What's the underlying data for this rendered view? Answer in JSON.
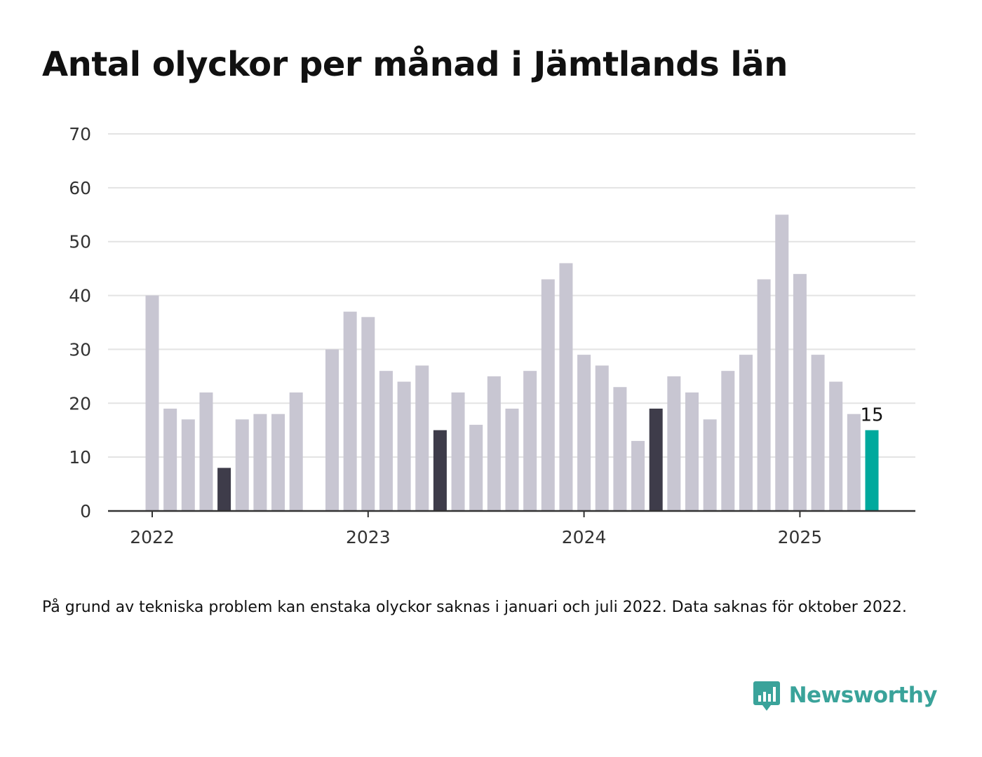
{
  "title": "Antal olyckor per månad i Jämtlands län",
  "footnote": "På grund av tekniska problem kan enstaka olyckor saknas i januari och juli 2022. Data saknas för oktober 2022.",
  "brand": {
    "name": "Newsworthy",
    "icon": "newsworthy-chart-logo-icon",
    "color": "#3aa39a"
  },
  "colors": {
    "bar": "#c8c6d2",
    "highlight_same_month": "#3e3c4a",
    "current": "#00a99d",
    "grid": "#e3e3e3",
    "axis": "#333333"
  },
  "chart_data": {
    "type": "bar",
    "title": "Antal olyckor per månad i Jämtlands län",
    "xlabel": "",
    "ylabel": "",
    "ylim": [
      0,
      70
    ],
    "yticks": [
      0,
      10,
      20,
      30,
      40,
      50,
      60,
      70
    ],
    "grid": true,
    "x_tick_labels": [
      {
        "label": "2022",
        "month": "2022-01"
      },
      {
        "label": "2023",
        "month": "2023-01"
      },
      {
        "label": "2024",
        "month": "2024-01"
      },
      {
        "label": "2025",
        "month": "2025-01"
      }
    ],
    "months": [
      "2022-01",
      "2022-02",
      "2022-03",
      "2022-04",
      "2022-05",
      "2022-06",
      "2022-07",
      "2022-08",
      "2022-09",
      "2022-10",
      "2022-11",
      "2022-12",
      "2023-01",
      "2023-02",
      "2023-03",
      "2023-04",
      "2023-05",
      "2023-06",
      "2023-07",
      "2023-08",
      "2023-09",
      "2023-10",
      "2023-11",
      "2023-12",
      "2024-01",
      "2024-02",
      "2024-03",
      "2024-04",
      "2024-05",
      "2024-06",
      "2024-07",
      "2024-08",
      "2024-09",
      "2024-10",
      "2024-11",
      "2024-12",
      "2025-01",
      "2025-02",
      "2025-03",
      "2025-04",
      "2025-05"
    ],
    "values": [
      40,
      19,
      17,
      22,
      8,
      17,
      18,
      18,
      22,
      null,
      30,
      37,
      36,
      26,
      24,
      27,
      15,
      22,
      16,
      25,
      19,
      26,
      43,
      46,
      29,
      27,
      23,
      13,
      19,
      25,
      22,
      17,
      26,
      29,
      43,
      55,
      44,
      29,
      24,
      18,
      15
    ],
    "highlighted_months": [
      "2022-05",
      "2023-05",
      "2024-05"
    ],
    "current_month": "2025-05",
    "data_labels": [
      {
        "month": "2025-05",
        "text": "15"
      }
    ]
  }
}
